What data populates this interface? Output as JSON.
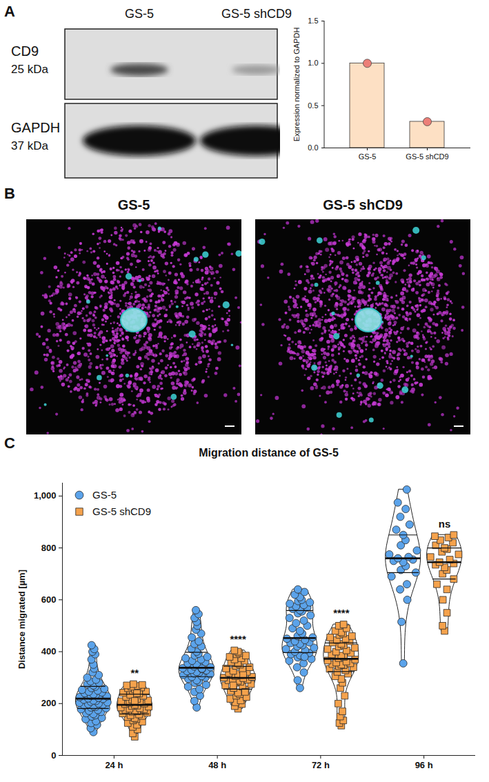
{
  "panel_labels": [
    "A",
    "B",
    "C"
  ],
  "blot": {
    "lanes": [
      "GS-5",
      "GS-5 shCD9"
    ],
    "rows": [
      {
        "name": "CD9",
        "size": "25 kDa"
      },
      {
        "name": "GAPDH",
        "size": "37 kDa"
      }
    ]
  },
  "images": {
    "titles": [
      "GS-5",
      "GS-5 shCD9"
    ]
  },
  "chart_data": [
    {
      "type": "bar",
      "categories": [
        "GS-5",
        "GS-5 shCD9"
      ],
      "values": [
        1.0,
        0.31
      ],
      "color": "#fde0c4",
      "marker": "circle",
      "y_label": "Expression normalized to GAPDH",
      "ylim": [
        0,
        1.5
      ],
      "yticks": [
        {
          "value": 0,
          "label": "0.0"
        },
        0.5,
        {
          "value": 1,
          "label": "1.0"
        },
        1.5
      ]
    },
    {
      "type": "violin",
      "title": "Migration distance of GS-5",
      "y_label": "Distance migrated [µm]",
      "categories": [
        "24 h",
        "48 h",
        "72 h",
        "96 h"
      ],
      "ylim": [
        0,
        1050
      ],
      "yticks": [
        0,
        200,
        400,
        600,
        800,
        {
          "value": 1000,
          "label": "1,000"
        }
      ],
      "legend": "top-left",
      "series": [
        {
          "name": "GS-5",
          "color": "#5ba3ea",
          "marker": "circle",
          "values": [
            [
              90,
              105,
              118,
              125,
              132,
              140,
              145,
              150,
              155,
              160,
              163,
              168,
              172,
              175,
              178,
              182,
              185,
              188,
              190,
              193,
              196,
              198,
              200,
              203,
              205,
              207,
              210,
              212,
              215,
              218,
              220,
              222,
              225,
              228,
              230,
              233,
              236,
              240,
              243,
              246,
              250,
              253,
              257,
              260,
              265,
              270,
              275,
              280,
              286,
              292,
              300,
              310,
              320,
              335,
              350,
              370,
              390,
              400,
              410,
              425
            ],
            [
              185,
              210,
              230,
              245,
              255,
              265,
              272,
              280,
              285,
              290,
              295,
              300,
              303,
              306,
              310,
              313,
              316,
              320,
              322,
              325,
              328,
              330,
              333,
              336,
              340,
              343,
              346,
              350,
              355,
              360,
              365,
              370,
              375,
              380,
              385,
              392,
              400,
              410,
              420,
              430,
              440,
              455,
              470,
              485,
              500,
              515,
              530,
              545,
              560,
              335
            ],
            [
              260,
              290,
              320,
              340,
              355,
              365,
              372,
              378,
              382,
              386,
              390,
              395,
              400,
              405,
              410,
              415,
              420,
              425,
              430,
              433,
              436,
              440,
              445,
              450,
              455,
              460,
              470,
              480,
              490,
              500,
              510,
              520,
              530,
              540,
              548,
              555,
              560,
              565,
              570,
              575,
              580,
              585,
              590,
              595,
              600,
              610,
              620,
              630,
              640,
              380
            ],
            [
              355,
              515,
              600,
              640,
              660,
              690,
              705,
              715,
              730,
              745,
              750,
              755,
              760,
              765,
              775,
              790,
              810,
              830,
              850,
              870,
              890,
              920,
              950,
              975,
              1025
            ]
          ]
        },
        {
          "name": "GS-5 shCD9",
          "color": "#f5a24c",
          "marker": "square",
          "values": [
            [
              72,
              85,
              100,
              110,
              118,
              125,
              130,
              135,
              140,
              144,
              148,
              152,
              155,
              158,
              162,
              165,
              168,
              170,
              173,
              176,
              178,
              180,
              182,
              185,
              188,
              190,
              192,
              195,
              198,
              200,
              203,
              206,
              209,
              212,
              215,
              218,
              222,
              226,
              230,
              234,
              238,
              242,
              246,
              250,
              253,
              256,
              259,
              262,
              265,
              268,
              270,
              272,
              275,
              240,
              210
            ],
            [
              180,
              190,
              198,
              205,
              212,
              218,
              225,
              230,
              236,
              242,
              248,
              254,
              260,
              265,
              270,
              275,
              280,
              284,
              288,
              290,
              292,
              295,
              298,
              300,
              303,
              306,
              310,
              314,
              318,
              322,
              326,
              330,
              335,
              340,
              345,
              350,
              355,
              360,
              365,
              370,
              375,
              380,
              385,
              390,
              395,
              400,
              405,
              245,
              270,
              310
            ],
            [
              115,
              125,
              135,
              150,
              170,
              200,
              230,
              260,
              280,
              295,
              305,
              315,
              322,
              328,
              334,
              340,
              344,
              348,
              350,
              352,
              355,
              358,
              362,
              366,
              370,
              375,
              380,
              385,
              390,
              395,
              400,
              405,
              410,
              415,
              420,
              425,
              430,
              435,
              440,
              445,
              450,
              455,
              460,
              465,
              470,
              475,
              480,
              490,
              500,
              505
            ],
            [
              480,
              500,
              550,
              600,
              640,
              660,
              680,
              700,
              715,
              725,
              735,
              740,
              745,
              755,
              765,
              775,
              785,
              795,
              800,
              810,
              820,
              830,
              840,
              845,
              850
            ]
          ]
        }
      ],
      "annotations": [
        {
          "category": "24 h",
          "series": "GS-5 shCD9",
          "text": "**"
        },
        {
          "category": "48 h",
          "series": "GS-5 shCD9",
          "text": "****"
        },
        {
          "category": "72 h",
          "series": "GS-5 shCD9",
          "text": "****"
        },
        {
          "category": "96 h",
          "series": "GS-5 shCD9",
          "text": "ns"
        }
      ]
    }
  ]
}
